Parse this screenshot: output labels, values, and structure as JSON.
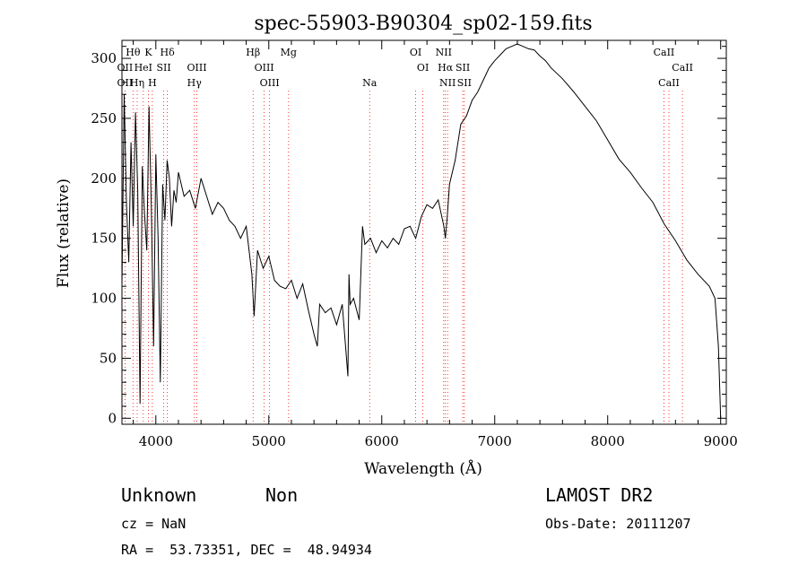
{
  "title": "spec-55903-B90304_sp02-159.fits",
  "info": {
    "class": "Unknown",
    "subclass": "Non",
    "cz": "cz = NaN",
    "coords": "RA =  53.73351, DEC =  48.94934",
    "survey": "LAMOST DR2",
    "obs_date": "Obs-Date: 20111207"
  },
  "chart_data": {
    "type": "line",
    "title": "spec-55903-B90304_sp02-159.fits",
    "xlabel": "Wavelength (Å)",
    "ylabel": "Flux (relative)",
    "xlim": [
      3700,
      9050
    ],
    "ylim": [
      -5,
      315
    ],
    "xticks": [
      4000,
      5000,
      6000,
      7000,
      8000,
      9000
    ],
    "yticks": [
      0,
      50,
      100,
      150,
      200,
      250,
      300
    ],
    "grid": false,
    "line_color": "#000000",
    "marker_color": "#ff0000",
    "series": [
      {
        "x": [
          3700,
          3720,
          3740,
          3760,
          3780,
          3800,
          3820,
          3840,
          3860,
          3880,
          3900,
          3920,
          3940,
          3960,
          3980,
          4000,
          4020,
          4040,
          4060,
          4080,
          4100,
          4120,
          4140,
          4160,
          4180,
          4200,
          4250,
          4300,
          4350,
          4400,
          4450,
          4500,
          4550,
          4600,
          4650,
          4700,
          4750,
          4800,
          4850,
          4870,
          4900,
          4950,
          5000,
          5050,
          5100,
          5150,
          5200,
          5250,
          5300,
          5350,
          5400,
          5430,
          5450,
          5500,
          5550,
          5600,
          5650,
          5700,
          5710,
          5720,
          5750,
          5800,
          5830,
          5850,
          5900,
          5950,
          6000,
          6050,
          6100,
          6150,
          6200,
          6250,
          6300,
          6350,
          6400,
          6450,
          6500,
          6550,
          6563,
          6580,
          6600,
          6650,
          6700,
          6750,
          6800,
          6850,
          6900,
          6950,
          7000,
          7050,
          7100,
          7150,
          7200,
          7250,
          7300,
          7350,
          7400,
          7450,
          7500,
          7600,
          7700,
          7800,
          7900,
          8000,
          8100,
          8200,
          8300,
          8400,
          8500,
          8600,
          8700,
          8800,
          8900,
          8950,
          8980,
          9000
        ],
        "y": [
          110,
          270,
          180,
          130,
          230,
          160,
          255,
          190,
          12,
          210,
          170,
          140,
          260,
          175,
          60,
          220,
          150,
          30,
          195,
          165,
          215,
          200,
          160,
          190,
          180,
          205,
          185,
          190,
          175,
          200,
          185,
          170,
          180,
          175,
          165,
          160,
          150,
          160,
          120,
          85,
          140,
          125,
          135,
          115,
          110,
          108,
          115,
          100,
          112,
          90,
          70,
          60,
          95,
          88,
          92,
          78,
          95,
          35,
          120,
          95,
          100,
          82,
          160,
          145,
          150,
          138,
          148,
          142,
          150,
          145,
          158,
          160,
          150,
          168,
          178,
          175,
          182,
          160,
          150,
          168,
          195,
          215,
          245,
          252,
          265,
          272,
          282,
          292,
          298,
          303,
          308,
          310,
          312,
          310,
          308,
          307,
          302,
          298,
          292,
          283,
          272,
          260,
          248,
          232,
          216,
          205,
          192,
          180,
          162,
          148,
          132,
          120,
          110,
          100,
          60,
          0
        ]
      }
    ],
    "spectral_lines": [
      {
        "label": "OII",
        "x": 3727,
        "row": 3
      },
      {
        "label": "Hθ",
        "x": 3798,
        "row": 1
      },
      {
        "label": "OII",
        "x": 3727,
        "row": 2
      },
      {
        "label": "Hη",
        "x": 3835,
        "row": 3
      },
      {
        "label": "HeI",
        "x": 3889,
        "row": 2
      },
      {
        "label": "K",
        "x": 3934,
        "row": 1
      },
      {
        "label": "H",
        "x": 3969,
        "row": 3
      },
      {
        "label": "SII",
        "x": 4070,
        "row": 2
      },
      {
        "label": "Hδ",
        "x": 4102,
        "row": 1
      },
      {
        "label": "OIII",
        "x": 4363,
        "row": 2
      },
      {
        "label": "Hγ",
        "x": 4341,
        "row": 3
      },
      {
        "label": "Hβ",
        "x": 4861,
        "row": 1
      },
      {
        "label": "OIII",
        "x": 4959,
        "row": 2
      },
      {
        "label": "OIII",
        "x": 5007,
        "row": 3
      },
      {
        "label": "Mg",
        "x": 5175,
        "row": 1
      },
      {
        "label": "Na",
        "x": 5893,
        "row": 3
      },
      {
        "label": "OI",
        "x": 6300,
        "row": 1
      },
      {
        "label": "OI",
        "x": 6364,
        "row": 2
      },
      {
        "label": "NII",
        "x": 6548,
        "row": 1
      },
      {
        "label": "Hα",
        "x": 6563,
        "row": 2
      },
      {
        "label": "NII",
        "x": 6583,
        "row": 3
      },
      {
        "label": "SII",
        "x": 6717,
        "row": 2
      },
      {
        "label": "SII",
        "x": 6731,
        "row": 3
      },
      {
        "label": "CaII",
        "x": 8498,
        "row": 1
      },
      {
        "label": "CaII",
        "x": 8542,
        "row": 3
      },
      {
        "label": "CaII",
        "x": 8662,
        "row": 2
      }
    ]
  }
}
